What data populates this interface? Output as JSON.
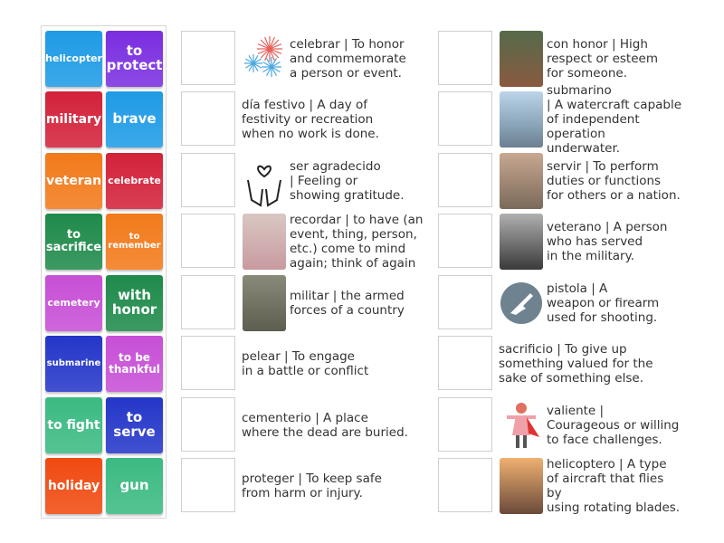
{
  "tiles": [
    {
      "label": "helicopter",
      "color": "#1e9be6",
      "size": 11
    },
    {
      "label": "to protect",
      "color": "#7a2ee0",
      "size": 15
    },
    {
      "label": "military",
      "color": "#d3213a",
      "size": 14
    },
    {
      "label": "brave",
      "color": "#1e9be6",
      "size": 15
    },
    {
      "label": "veteran",
      "color": "#f27a1a",
      "size": 14
    },
    {
      "label": "celebrate",
      "color": "#d3213a",
      "size": 11
    },
    {
      "label": "to sacrifice",
      "color": "#1e8a4a",
      "size": 13
    },
    {
      "label": "to remember",
      "color": "#f27a1a",
      "size": 10
    },
    {
      "label": "cemetery",
      "color": "#c74fd6",
      "size": 11
    },
    {
      "label": "with honor",
      "color": "#1e8a4a",
      "size": 15
    },
    {
      "label": "submarine",
      "color": "#2436c9",
      "size": 10
    },
    {
      "label": "to be thankful",
      "color": "#c74fd6",
      "size": 12
    },
    {
      "label": "to fight",
      "color": "#3bba82",
      "size": 14
    },
    {
      "label": "to serve",
      "color": "#2436c9",
      "size": 15
    },
    {
      "label": "holiday",
      "color": "#f04a10",
      "size": 14
    },
    {
      "label": "gun",
      "color": "#3bba82",
      "size": 15
    }
  ],
  "left": [
    {
      "text": "celebrar | To honor\nand commemorate\na person or event.",
      "icon": "fireworks-icon"
    },
    {
      "text": "día festivo | A day of\nfestivity or recreation\nwhen no work is done.",
      "icon": ""
    },
    {
      "text": "ser agradecido\n| Feeling or\nshowing gratitude.",
      "icon": "hands-heart-icon"
    },
    {
      "text": "recordar | to have (an\nevent, thing, person,\netc.) come to mind\nagain; think of again",
      "icon": "woman-thinking-photo"
    },
    {
      "text": "militar | the armed\nforces of a country",
      "icon": "soldiers-photo"
    },
    {
      "text": "pelear | To engage\nin a battle or conflict",
      "icon": ""
    },
    {
      "text": "cementerio | A place\nwhere the dead are buried.",
      "icon": ""
    },
    {
      "text": "proteger | To keep safe\nfrom harm or injury.",
      "icon": ""
    }
  ],
  "right": [
    {
      "text": "con honor | High\nrespect or esteem\nfor someone.",
      "icon": "hand-on-heart-photo"
    },
    {
      "text": "submarino\n| A watercraft capable\nof independent\noperation underwater.",
      "icon": "submarine-photo"
    },
    {
      "text": "servir | To perform\nduties or functions\nfor others or a nation.",
      "icon": "salute-photo"
    },
    {
      "text": "veterano | A person\nwho has served\nin the military.",
      "icon": "veteran-photo"
    },
    {
      "text": "pistola | A\nweapon or firearm\nused for shooting.",
      "icon": "gun-icon"
    },
    {
      "text": "sacrificio | To give up\nsomething valued for the\nsake of something else.",
      "icon": ""
    },
    {
      "text": "valiente |\nCourageous or willing\nto face challenges.",
      "icon": "hero-girl-icon"
    },
    {
      "text": "helicoptero | A type\nof aircraft that flies by\nusing rotating blades.",
      "icon": "helicopter-photo"
    }
  ]
}
